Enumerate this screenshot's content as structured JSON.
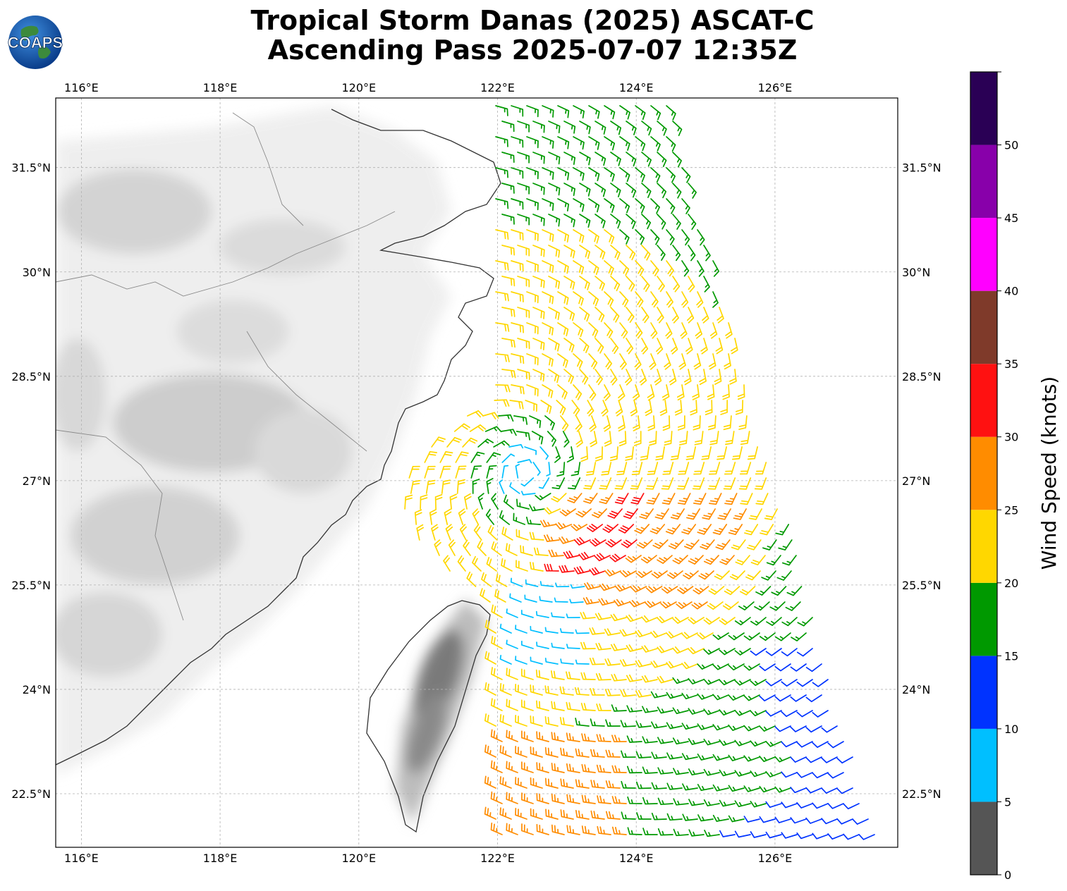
{
  "title": {
    "line1": "Tropical Storm Danas (2025) ASCAT-C",
    "line2": "Ascending Pass 2025-07-07 12:35Z"
  },
  "logo": {
    "text": "COAPS",
    "icon": "globe-icon"
  },
  "map": {
    "lon_range": [
      115.63,
      127.77
    ],
    "lat_range": [
      21.73,
      32.5
    ],
    "lon_ticks": [
      "116°E",
      "118°E",
      "120°E",
      "122°E",
      "124°E",
      "126°E"
    ],
    "lat_ticks": [
      "31.5°N",
      "30°N",
      "28.5°N",
      "27°N",
      "25.5°N",
      "24°N",
      "22.5°N"
    ],
    "gridlines": true,
    "storm_center": {
      "lon": 122.4,
      "lat": 27.1
    },
    "swath": {
      "west_lon": 121.9,
      "east_lon_north": 124.5,
      "east_lon_south": 127.5
    }
  },
  "colorbar": {
    "label": "Wind Speed (knots)",
    "ticks": [
      "0",
      "5",
      "10",
      "15",
      "20",
      "25",
      "30",
      "35",
      "40",
      "45",
      "50"
    ],
    "bins": [
      {
        "min": 0,
        "max": 5,
        "color": "#555555"
      },
      {
        "min": 5,
        "max": 10,
        "color": "#00bfff"
      },
      {
        "min": 10,
        "max": 15,
        "color": "#0033ff"
      },
      {
        "min": 15,
        "max": 20,
        "color": "#009900"
      },
      {
        "min": 20,
        "max": 25,
        "color": "#ffd700"
      },
      {
        "min": 25,
        "max": 30,
        "color": "#ff8c00"
      },
      {
        "min": 30,
        "max": 35,
        "color": "#ff1111"
      },
      {
        "min": 35,
        "max": 40,
        "color": "#7f3a2a"
      },
      {
        "min": 40,
        "max": 45,
        "color": "#ff00ff"
      },
      {
        "min": 45,
        "max": 50,
        "color": "#8800aa"
      },
      {
        "min": 50,
        "max": 55,
        "color": "#2a0055"
      }
    ]
  }
}
